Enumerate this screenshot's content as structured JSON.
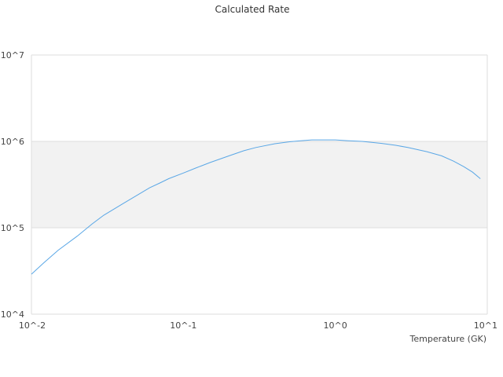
{
  "chart_data": {
    "type": "line",
    "title": "Calculated Rate",
    "xlabel": "Temperature (GK)",
    "ylabel": "",
    "x_scale": "log",
    "y_scale": "log",
    "xlim": [
      0.01,
      10
    ],
    "ylim": [
      10000,
      10000000
    ],
    "x_tick_labels": [
      "10^-2",
      "10^-1",
      "10^0",
      "10^1"
    ],
    "y_tick_labels": [
      "10^7",
      "10^6",
      "10^5",
      "10^4"
    ],
    "grid": false,
    "legend": "none",
    "shaded_band": {
      "y_from": 100000,
      "y_to": 1000000,
      "color": "#f2f2f2"
    },
    "line_color": "#5aa7e6",
    "series": [
      {
        "x": [
          0.01,
          0.012,
          0.015,
          0.02,
          0.025,
          0.03,
          0.04,
          0.05,
          0.06,
          0.07,
          0.08,
          0.1,
          0.12,
          0.15,
          0.2,
          0.25,
          0.3,
          0.4,
          0.5,
          0.6,
          0.7,
          0.8,
          1.0,
          1.2,
          1.5,
          2.0,
          2.5,
          3.0,
          4.0,
          5.0,
          6.0,
          7.0,
          8.0,
          9.0
        ],
        "y": [
          29000,
          39000,
          55000,
          80000,
          110000,
          140000,
          190000,
          240000,
          290000,
          330000,
          370000,
          430000,
          490000,
          570000,
          680000,
          780000,
          850000,
          940000,
          990000,
          1020000,
          1040000,
          1040000,
          1040000,
          1020000,
          1000000,
          950000,
          900000,
          850000,
          760000,
          680000,
          590000,
          510000,
          440000,
          370000
        ]
      }
    ]
  }
}
